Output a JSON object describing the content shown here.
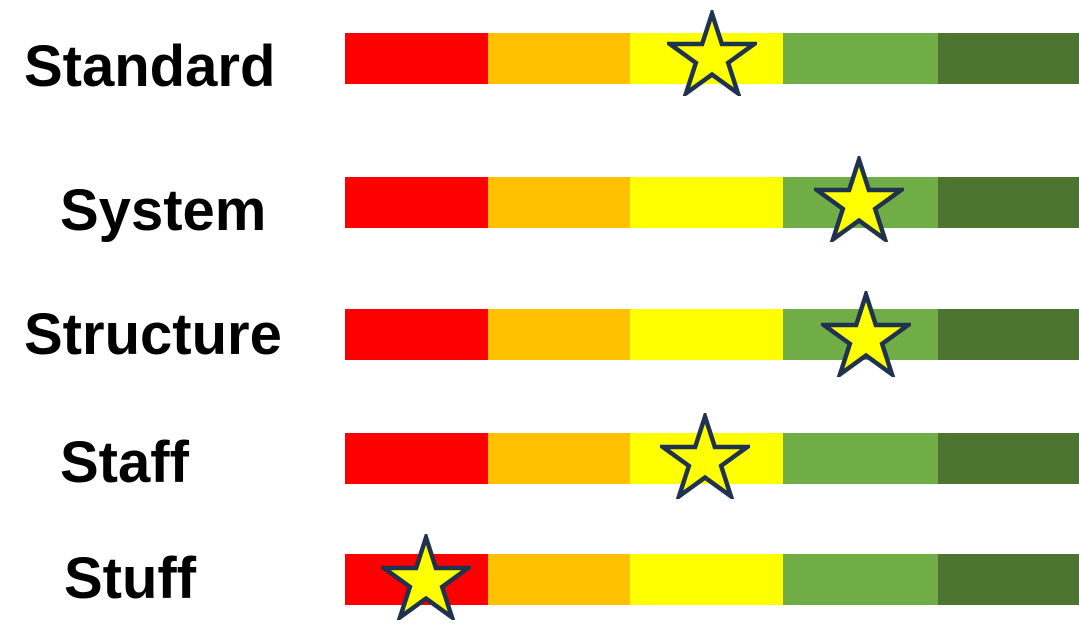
{
  "scale": {
    "level_count": 5,
    "colors": [
      "#ff0000",
      "#ffc000",
      "#ffff00",
      "#70ad47",
      "#4e7432"
    ],
    "star_fill": "#ffff00",
    "star_stroke": "#1f3250"
  },
  "rows": [
    {
      "label": "Standard",
      "rating": 0.5
    },
    {
      "label": "System",
      "rating": 0.7
    },
    {
      "label": "Structure",
      "rating": 0.71
    },
    {
      "label": "Staff",
      "rating": 0.49
    },
    {
      "label": "Stuff",
      "rating": 0.11
    }
  ]
}
